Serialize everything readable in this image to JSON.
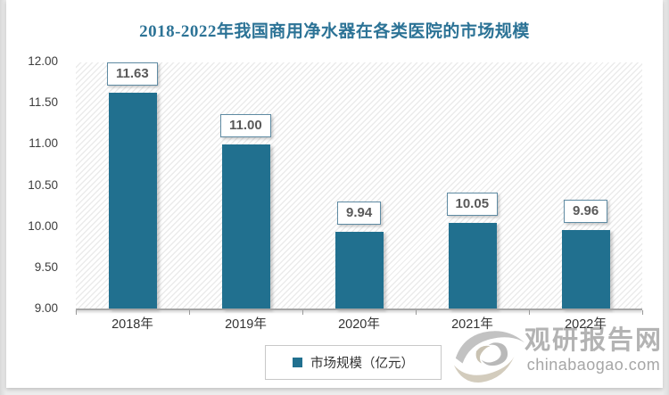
{
  "title": "2018-2022年我国商用净水器在各类医院的市场规模",
  "chart_data": {
    "type": "bar",
    "categories": [
      "2018年",
      "2019年",
      "2020年",
      "2021年",
      "2022年"
    ],
    "series": [
      {
        "name": "市场规模（亿元）",
        "values": [
          11.63,
          11.0,
          9.94,
          10.05,
          9.96
        ]
      }
    ],
    "data_labels": [
      "11.63",
      "11.00",
      "9.94",
      "10.05",
      "9.96"
    ],
    "title": "2018-2022年我国商用净水器在各类医院的市场规模",
    "xlabel": "",
    "ylabel": "",
    "ylim": [
      9.0,
      12.0
    ],
    "ytick_step": 0.5,
    "yticks": [
      "12.00",
      "11.50",
      "11.00",
      "10.50",
      "10.00",
      "9.50",
      "9.00"
    ],
    "grid": false,
    "legend_position": "bottom",
    "plot_background": "diagonal-hatch"
  },
  "legend": {
    "label": "市场规模（亿元）"
  },
  "watermark": {
    "name": "观研报告网",
    "domain": "chinabaogao.com"
  },
  "colors": {
    "bar": "#21708F",
    "title": "#2C7396",
    "data_label_border": "#5F8BA3",
    "data_label_text": "#595959",
    "axis_line": "#A6A6A6",
    "watermark_text": "#B3B3B3"
  }
}
